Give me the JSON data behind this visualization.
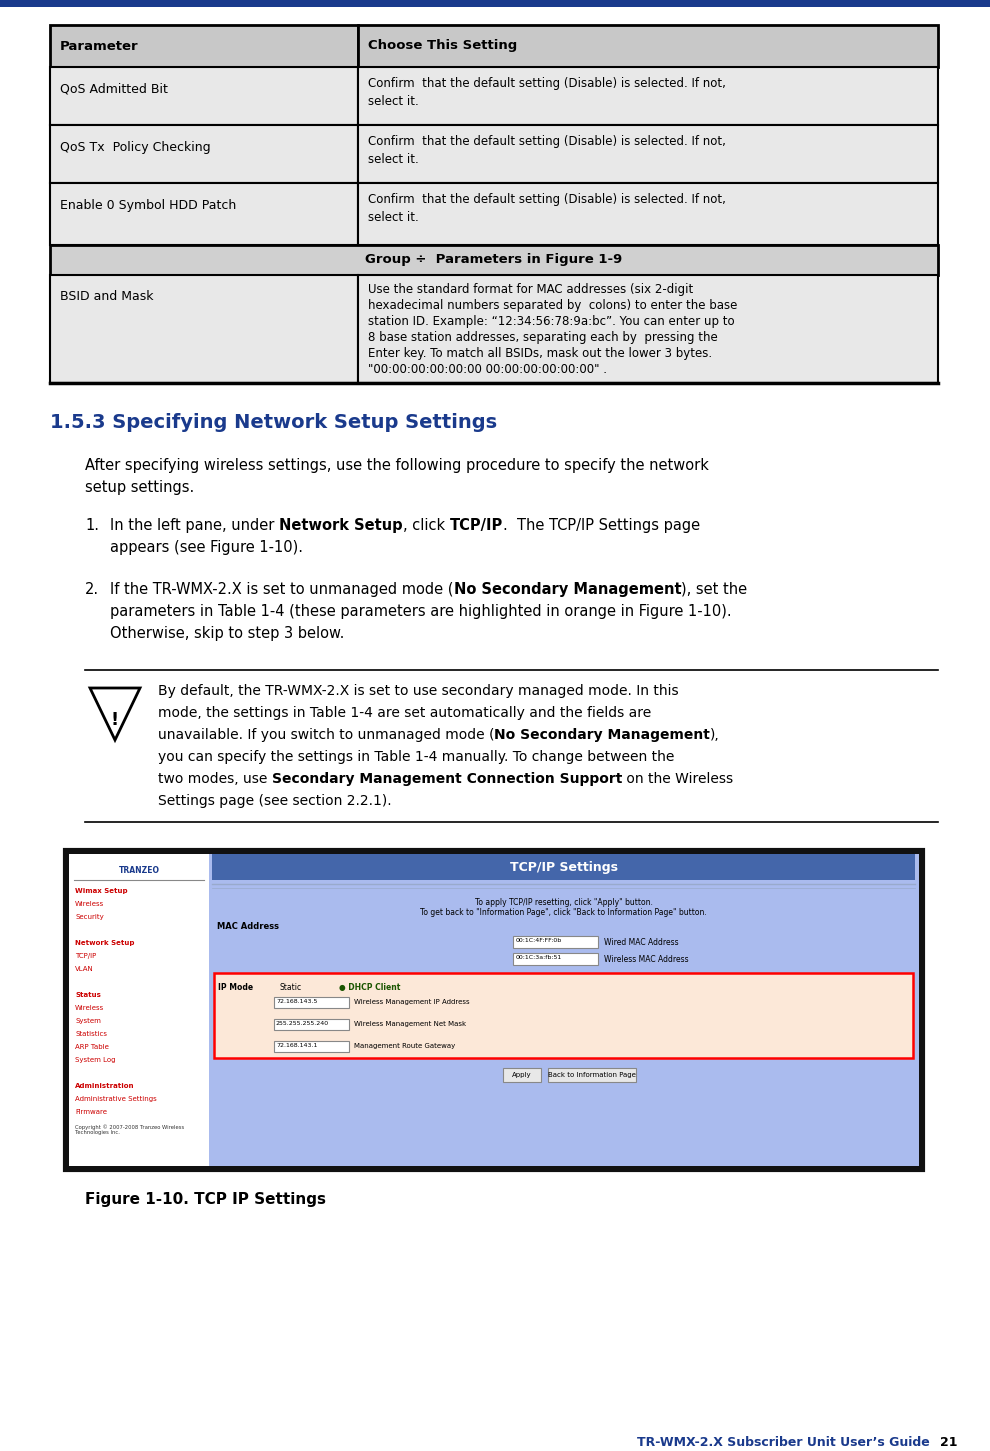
{
  "page_bg": "#ffffff",
  "top_stripe_color": "#1a3a8c",
  "table_header_bg": "#c8c8c8",
  "table_row_bg": "#e8e8e8",
  "table_border": "#000000",
  "table_group_bg": "#d0d0d0",
  "header_text": [
    "Parameter",
    "Choose This Setting"
  ],
  "rows": [
    {
      "param": "QoS Admitted Bit",
      "setting": "Confirm  that the default setting (Disable) is selected. If not,\nselect it."
    },
    {
      "param": "QoS Tx  Policy Checking",
      "setting": "Confirm  that the default setting (Disable) is selected. If not,\nselect it."
    },
    {
      "param": "Enable 0 Symbol HDD Patch",
      "setting": "Confirm  that the default setting (Disable) is selected. If not,\nselect it."
    }
  ],
  "group_row": "Group ÷  Parameters in Figure 1-9",
  "bsid_row": {
    "param": "BSID and Mask",
    "setting": "Use the standard format for MAC addresses (six 2-digit\nhexadecimal numbers separated by  colons) to enter the base\nstation ID. Example: “12:34:56:78:9a:bc”. You can enter up to\n8 base station addresses, separating each by  pressing the\nEnter key. To match all BSIDs, mask out the lower 3 bytes.\n\"00:00:00:00:00:00 00:00:00:00:00:00\" ."
  },
  "section_title": "1.5.3 Specifying Network Setup Settings",
  "section_title_color": "#1a3a8c",
  "body_text_1a": "After specifying wireless settings, use the following procedure to specify the network",
  "body_text_1b": "setup settings.",
  "list_item_1a_plain": "In the left pane, under ",
  "list_item_1a_bold1": "Network Setup",
  "list_item_1a_mid": ", click ",
  "list_item_1a_bold2": "TCP/IP",
  "list_item_1a_end": ".  The TCP/IP Settings page",
  "list_item_1b": "appears (see Figure 1-10).",
  "list_item_2a_plain": "If the TR-WMX-2.X is set to unmanaged mode (",
  "list_item_2a_bold": "No Secondary Management",
  "list_item_2a_end": "), set the",
  "list_item_2b": "parameters in Table 1-4 (these parameters are highlighted in orange in Figure 1-10).",
  "list_item_2c": "Otherwise, skip to step 3 below.",
  "note_line0": "By default, the TR-WMX-2.X is set to use secondary managed mode. In this",
  "note_line1": "mode, the settings in Table 1-4 are set automatically and the fields are",
  "note_line2a": "unavailable. If you switch to unmanaged mode (",
  "note_line2b": "No Secondary Management",
  "note_line2c": "),",
  "note_line3": "you can specify the settings in Table 1-4 manually. To change between the",
  "note_line4a": "two modes, use ",
  "note_line4b": "Secondary Management Connection Support",
  "note_line4c": " on the Wireless",
  "note_line5": "Settings page (see section 2.2.1).",
  "figure_caption": "Figure 1-10. TCP IP Settings",
  "footer_text": "TR-WMX-2.X Subscriber Unit User’s Guide",
  "page_number": "21",
  "screenshot_bg": "#aabbee",
  "screenshot_title": "TCP/IP Settings",
  "nav_bg": "#ffffff",
  "nav_items": [
    {
      "text": "Wimax Setup",
      "bold": true,
      "color": "#cc0000"
    },
    {
      "text": "Wireless",
      "bold": false,
      "color": "#cc0000"
    },
    {
      "text": "Security",
      "bold": false,
      "color": "#cc0000"
    },
    {
      "text": "",
      "bold": false,
      "color": "#000000"
    },
    {
      "text": "Network Setup",
      "bold": true,
      "color": "#cc0000"
    },
    {
      "text": "TCP/IP",
      "bold": false,
      "color": "#cc0000"
    },
    {
      "text": "VLAN",
      "bold": false,
      "color": "#cc0000"
    },
    {
      "text": "",
      "bold": false,
      "color": "#000000"
    },
    {
      "text": "Status",
      "bold": true,
      "color": "#cc0000"
    },
    {
      "text": "Wireless",
      "bold": false,
      "color": "#cc0000"
    },
    {
      "text": "System",
      "bold": false,
      "color": "#cc0000"
    },
    {
      "text": "Statistics",
      "bold": false,
      "color": "#cc0000"
    },
    {
      "text": "ARP Table",
      "bold": false,
      "color": "#cc0000"
    },
    {
      "text": "System Log",
      "bold": false,
      "color": "#cc0000"
    },
    {
      "text": "",
      "bold": false,
      "color": "#000000"
    },
    {
      "text": "Administration",
      "bold": true,
      "color": "#cc0000"
    },
    {
      "text": "Administrative Settings",
      "bold": false,
      "color": "#cc0000"
    },
    {
      "text": "Firmware",
      "bold": false,
      "color": "#cc0000"
    }
  ]
}
